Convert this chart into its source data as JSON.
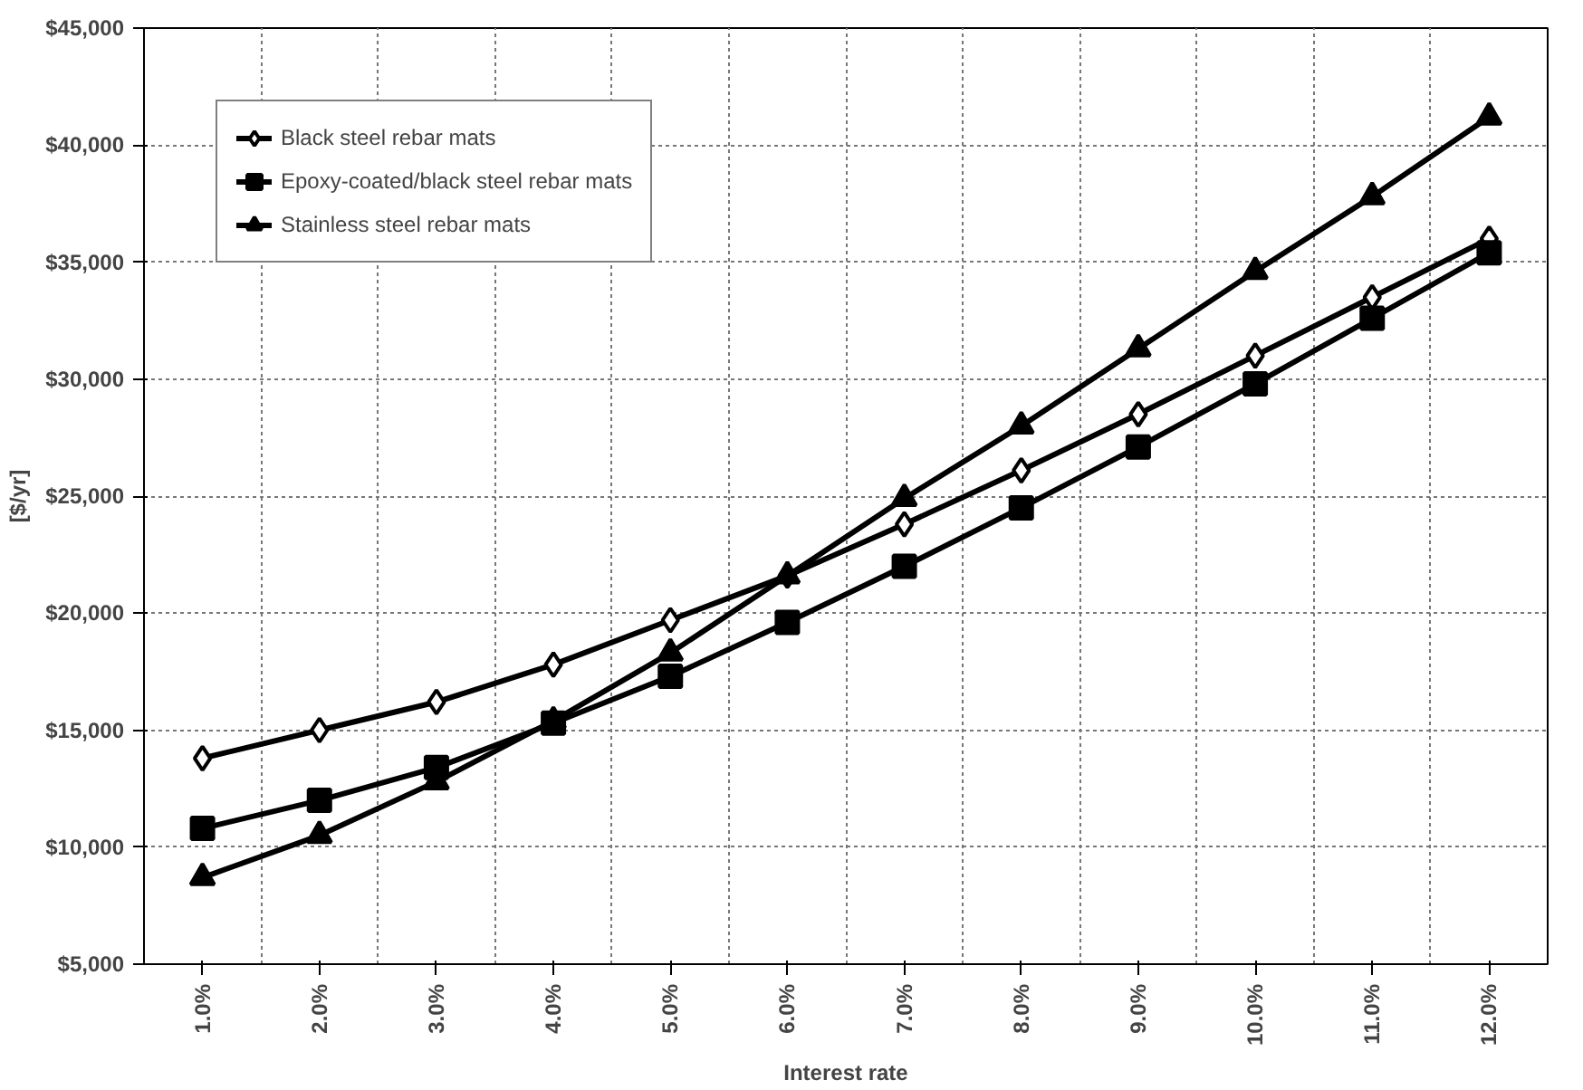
{
  "chart_data": {
    "type": "line",
    "xlabel": "Interest rate",
    "ylabel": "[$/yr]",
    "categories": [
      "1.0%",
      "2.0%",
      "3.0%",
      "4.0%",
      "5.0%",
      "6.0%",
      "7.0%",
      "8.0%",
      "9.0%",
      "10.0%",
      "11.0%",
      "12.0%"
    ],
    "ylim": [
      5000,
      45000
    ],
    "yticks": [
      {
        "value": 5000,
        "label": "$5,000"
      },
      {
        "value": 10000,
        "label": "$10,000"
      },
      {
        "value": 15000,
        "label": "$15,000"
      },
      {
        "value": 20000,
        "label": "$20,000"
      },
      {
        "value": 25000,
        "label": "$25,000"
      },
      {
        "value": 30000,
        "label": "$30,000"
      },
      {
        "value": 35000,
        "label": "$35,000"
      },
      {
        "value": 40000,
        "label": "$40,000"
      },
      {
        "value": 45000,
        "label": "$45,000"
      }
    ],
    "grid": true,
    "legend": "top left",
    "line_style": "solid",
    "series": [
      {
        "name": "Black steel rebar mats",
        "color": "#000000",
        "marker": "diamond",
        "values": [
          13800,
          15000,
          16200,
          17800,
          19700,
          21600,
          23800,
          26100,
          28500,
          31000,
          33500,
          36000
        ]
      },
      {
        "name": "Epoxy-coated/black steel rebar mats",
        "color": "#000000",
        "marker": "square",
        "values": [
          10800,
          12000,
          13400,
          15300,
          17300,
          19600,
          22000,
          24500,
          27100,
          29800,
          32600,
          35400
        ]
      },
      {
        "name": "Stainless steel rebar mats",
        "color": "#000000",
        "marker": "triangle",
        "values": [
          8700,
          10500,
          12800,
          15400,
          18300,
          21600,
          24900,
          28000,
          31300,
          34600,
          37800,
          41200
        ]
      }
    ]
  }
}
